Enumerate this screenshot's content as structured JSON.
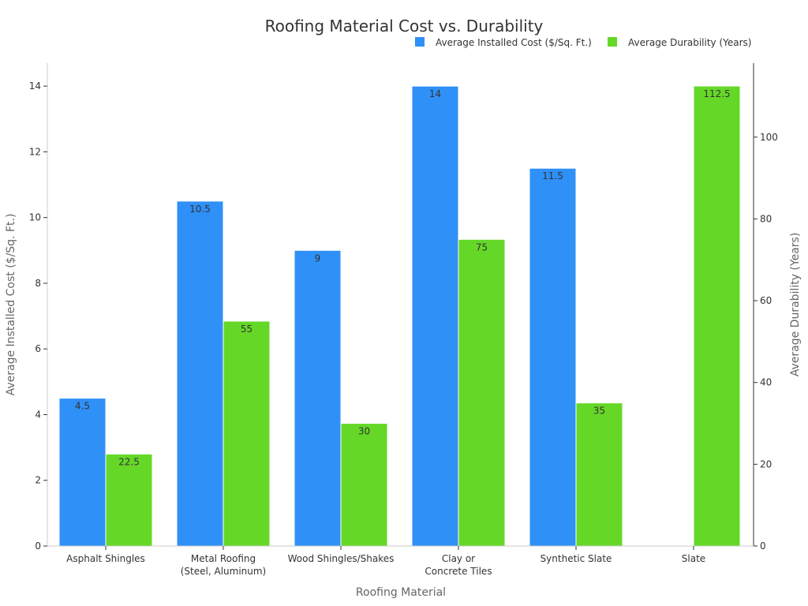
{
  "chart_data": {
    "type": "bar",
    "title": "Roofing Material Cost vs. Durability",
    "xlabel": "Roofing Material",
    "ylabel_left": "Average Installed Cost ($/Sq. Ft.)",
    "ylabel_right": "Average Durability (Years)",
    "categories": [
      [
        "Asphalt Shingles"
      ],
      [
        "Metal Roofing",
        "(Steel, Aluminum)"
      ],
      [
        "Wood Shingles/Shakes"
      ],
      [
        "Clay or",
        "Concrete Tiles"
      ],
      [
        "Synthetic Slate"
      ],
      [
        "Slate"
      ]
    ],
    "series": [
      {
        "name": "Average Installed Cost ($/Sq. Ft.)",
        "axis": "left",
        "color": "#2f90f7",
        "values": [
          4.5,
          10.5,
          9,
          14,
          11.5,
          null
        ],
        "labels": [
          "4.5",
          "10.5",
          "9",
          "14",
          "11.5",
          ""
        ]
      },
      {
        "name": "Average Durability (Years)",
        "axis": "right",
        "color": "#65d827",
        "values": [
          22.5,
          55,
          30,
          75,
          35,
          112.5
        ],
        "labels": [
          "22.5",
          "55",
          "30",
          "75",
          "35",
          "112.5"
        ]
      }
    ],
    "ylim_left": [
      0,
      14.7
    ],
    "yticks_left": [
      "0",
      "2",
      "4",
      "6",
      "8",
      "10",
      "12",
      "14"
    ],
    "ylim_right": [
      0,
      118.1
    ],
    "yticks_right": [
      "0",
      "20",
      "40",
      "60",
      "80",
      "100"
    ],
    "legend_position": "top-right",
    "grid": false
  }
}
